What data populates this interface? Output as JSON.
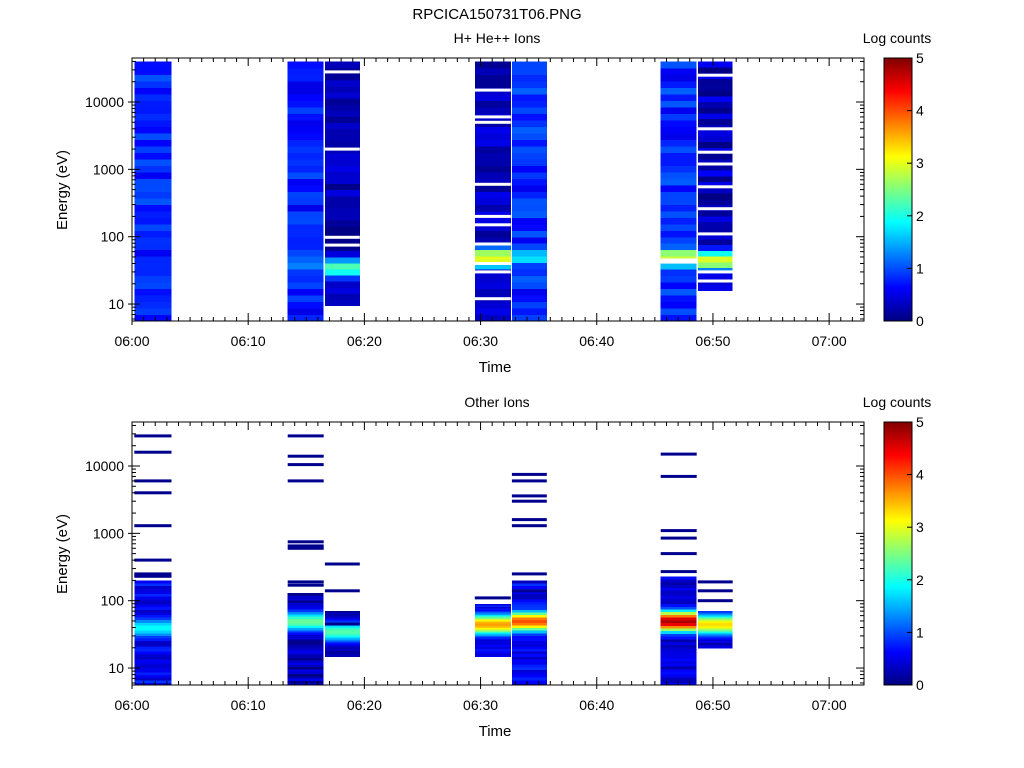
{
  "figure_title": "RPCICA150731T06.PNG",
  "chart_data": [
    {
      "type": "heatmap",
      "title": "H+ He++ Ions",
      "xlabel": "Time",
      "ylabel": "Energy (eV)",
      "x_ticks": [
        "06:00",
        "06:10",
        "06:20",
        "06:30",
        "06:40",
        "06:50",
        "07:00"
      ],
      "y_ticks": [
        "10",
        "100",
        "1000",
        "10000"
      ],
      "y_scale": "log",
      "ylim": [
        5.6,
        45000
      ],
      "xlim_minutes": [
        0,
        63
      ],
      "colorbar": {
        "label": "Log counts",
        "ticks": [
          "0",
          "1",
          "2",
          "3",
          "4",
          "5"
        ],
        "range": [
          0,
          5
        ]
      },
      "blocks": [
        {
          "start": "06:00.2",
          "end": "06:03.4",
          "emin": 5.6,
          "emax": 40000,
          "base": 0.8,
          "var": 0.25,
          "peak": null,
          "gaps": []
        },
        {
          "start": "06:13.4",
          "end": "06:16.5",
          "emin": 5.6,
          "emax": 40000,
          "base": 0.75,
          "var": 0.25,
          "peak": {
            "e": 40,
            "v": 1.3
          },
          "gaps": []
        },
        {
          "start": "06:16.6",
          "end": "06:19.6",
          "emin": 9.5,
          "emax": 40000,
          "base": 0.25,
          "var": 0.25,
          "peak": {
            "e": 35,
            "v": 2.3
          },
          "gaps": [
            28000,
            2000,
            98,
            75
          ]
        },
        {
          "start": "06:29.5",
          "end": "06:32.6",
          "emin": 5.6,
          "emax": 40000,
          "base": 0.3,
          "var": 0.25,
          "peak": {
            "e": 50,
            "v": 3.1
          },
          "gaps": [
            15000,
            6000,
            5000,
            600,
            200,
            150,
            78,
            40,
            30,
            12
          ]
        },
        {
          "start": "06:32.7",
          "end": "06:35.7",
          "emin": 5.6,
          "emax": 40000,
          "base": 0.8,
          "var": 0.3,
          "peak": {
            "e": 50,
            "v": 1.8
          },
          "gaps": []
        },
        {
          "start": "06:45.5",
          "end": "06:48.6",
          "emin": 5.6,
          "emax": 40000,
          "base": 0.8,
          "var": 0.3,
          "peak": {
            "e": 50,
            "v": 3.0
          },
          "gaps": [
            45,
            42
          ]
        },
        {
          "start": "06:48.7",
          "end": "06:51.7",
          "emin": 16,
          "emax": 40000,
          "base": 0.3,
          "var": 0.3,
          "peak": {
            "e": 45,
            "v": 3.0
          },
          "gaps": [
            25000,
            4000,
            1800,
            1200,
            550,
            260,
            110,
            30,
            22
          ]
        }
      ]
    },
    {
      "type": "heatmap",
      "title": "Other Ions",
      "xlabel": "Time",
      "ylabel": "Energy (eV)",
      "x_ticks": [
        "06:00",
        "06:10",
        "06:20",
        "06:30",
        "06:40",
        "06:50",
        "07:00"
      ],
      "y_ticks": [
        "10",
        "100",
        "1000",
        "10000"
      ],
      "y_scale": "log",
      "ylim": [
        5.6,
        45000
      ],
      "xlim_minutes": [
        0,
        63
      ],
      "colorbar": {
        "label": "Log counts",
        "ticks": [
          "0",
          "1",
          "2",
          "3",
          "4",
          "5"
        ],
        "range": [
          0,
          5
        ]
      },
      "blocks": [
        {
          "start": "06:00.2",
          "end": "06:03.4",
          "emin": 5.6,
          "emax": 200,
          "base": 0.6,
          "var": 0.3,
          "peak": {
            "e": 40,
            "v": 1.9
          },
          "lines": [
            28000,
            16000,
            6000,
            4000,
            1300,
            400,
            250,
            230
          ]
        },
        {
          "start": "06:13.4",
          "end": "06:16.5",
          "emin": 5.6,
          "emax": 130,
          "base": 0.3,
          "var": 0.3,
          "peak": {
            "e": 50,
            "v": 2.4
          },
          "lines": [
            28000,
            14000,
            10500,
            6000,
            750,
            650,
            600,
            190,
            170
          ]
        },
        {
          "start": "06:16.6",
          "end": "06:19.6",
          "emin": 15,
          "emax": 70,
          "base": 0.2,
          "var": 0.2,
          "peak": {
            "e": 35,
            "v": 2.3
          },
          "lines": [
            350,
            140,
            45
          ]
        },
        {
          "start": "06:29.5",
          "end": "06:32.6",
          "emin": 15,
          "emax": 90,
          "base": 0.5,
          "var": 0.3,
          "peak": {
            "e": 45,
            "v": 3.6
          },
          "lines": [
            110
          ]
        },
        {
          "start": "06:32.7",
          "end": "06:35.7",
          "emin": 5.6,
          "emax": 200,
          "base": 0.6,
          "var": 0.3,
          "peak": {
            "e": 50,
            "v": 4.0
          },
          "lines": [
            7500,
            6000,
            3600,
            3000,
            1600,
            1300,
            250,
            140
          ]
        },
        {
          "start": "06:45.5",
          "end": "06:48.6",
          "emin": 5.6,
          "emax": 230,
          "base": 0.4,
          "var": 0.3,
          "peak": {
            "e": 50,
            "v": 4.8
          },
          "lines": [
            15000,
            7000,
            1100,
            850,
            500,
            270
          ]
        },
        {
          "start": "06:48.7",
          "end": "06:51.7",
          "emin": 20,
          "emax": 70,
          "base": 0.3,
          "var": 0.3,
          "peak": {
            "e": 45,
            "v": 3.3
          },
          "lines": [
            190,
            140,
            100
          ]
        }
      ]
    }
  ]
}
